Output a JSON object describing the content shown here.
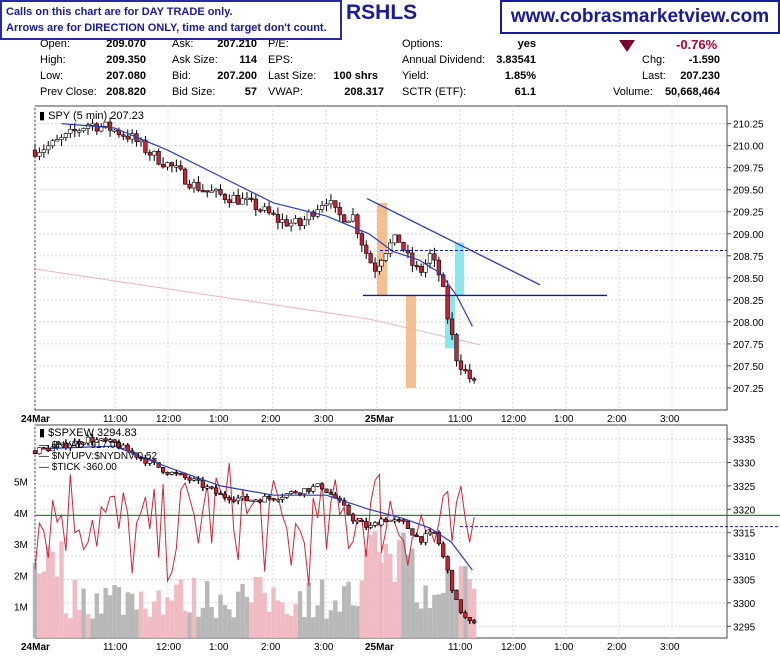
{
  "header": {
    "notice_line1": "Calls on this chart are for DAY TRADE only.",
    "notice_line2": "Arrows are for DIRECTION ONLY, time and target don't count.",
    "symbol_partial": "RSHLS",
    "website": "www.cobrasmarketview.com"
  },
  "quote": {
    "open_label": "Open:",
    "open": "209.070",
    "high_label": "High:",
    "high": "209.350",
    "low_label": "Low:",
    "low": "207.080",
    "prev_close_label": "Prev Close:",
    "prev_close": "208.820",
    "ask_label": "Ask:",
    "ask": "207.210",
    "ask_size_label": "Ask Size:",
    "ask_size": "114",
    "bid_label": "Bid:",
    "bid": "207.200",
    "bid_size_label": "Bid Size:",
    "bid_size": "57",
    "pe_label": "P/E:",
    "eps_label": "EPS:",
    "last_size_label": "Last Size:",
    "last_size": "100 shrs",
    "vwap_label": "VWAP:",
    "vwap": "208.317",
    "options_label": "Options:",
    "options": "yes",
    "annual_dividend_label": "Annual Dividend:",
    "annual_dividend": "3.83541",
    "yield_label": "Yield:",
    "yield": "1.85%",
    "sctr_label": "SCTR (ETF):",
    "sctr": "61.1",
    "pct_change": "-0.76%",
    "chg_label": "Chg:",
    "chg": "-1.590",
    "last_label": "Last:",
    "last": "207.230",
    "volume_label": "Volume:",
    "volume": "50,668,464"
  },
  "colors": {
    "accent_blue": "#1a1aa0",
    "up_candle": "#ffffff",
    "down_candle": "#cc2233",
    "ma_line": "#2b3fb5",
    "hline_green": "#2c8a2c",
    "orange_bar": "#f5b47a",
    "cyan_bar": "#7ae6ee",
    "volume_gray": "#b0b0b0",
    "volume_pink": "#f0b4bc"
  },
  "chart_data": [
    {
      "type": "candlestick",
      "title": "SPY (5 min) 207.23",
      "ylim": [
        207.0,
        210.45
      ],
      "y_ticks": [
        "210.25",
        "210.00",
        "209.75",
        "209.50",
        "209.25",
        "209.00",
        "208.75",
        "208.50",
        "208.25",
        "208.00",
        "207.75",
        "207.50",
        "207.25"
      ],
      "x_ticks": [
        "24Mar",
        "11:00",
        "12:00",
        "1:00",
        "2:00",
        "3:00",
        "25Mar",
        "11:00",
        "12:00",
        "1:00",
        "2:00",
        "3:00"
      ],
      "annotations": {
        "horizontal_support": 208.3,
        "horizontal_dashed": 208.81
      },
      "approx_close_path": [
        [
          0,
          209.95
        ],
        [
          0.3,
          210.0
        ],
        [
          0.6,
          210.1
        ],
        [
          1.0,
          210.25
        ],
        [
          1.4,
          210.2
        ],
        [
          1.8,
          210.1
        ],
        [
          2.2,
          209.9
        ],
        [
          2.6,
          209.75
        ],
        [
          3.0,
          209.55
        ],
        [
          3.4,
          209.45
        ],
        [
          3.8,
          209.4
        ],
        [
          4.2,
          209.3
        ],
        [
          4.6,
          209.15
        ],
        [
          5.0,
          209.1
        ],
        [
          5.3,
          209.3
        ],
        [
          5.5,
          209.4
        ],
        [
          5.7,
          209.2
        ],
        [
          6.0,
          209.2
        ],
        [
          6.2,
          208.85
        ],
        [
          6.4,
          208.6
        ],
        [
          6.7,
          208.85
        ],
        [
          6.9,
          208.95
        ],
        [
          7.1,
          208.7
        ],
        [
          7.3,
          208.55
        ],
        [
          7.5,
          208.75
        ],
        [
          7.7,
          208.5
        ],
        [
          7.85,
          208.0
        ],
        [
          8.0,
          207.6
        ],
        [
          8.2,
          207.4
        ],
        [
          8.4,
          207.25
        ]
      ]
    },
    {
      "type": "candlestick",
      "title": "$SPXEW 3294.83",
      "legend": [
        "$NYAD -917.00",
        "$NYUPV:$NYDNV 0.52",
        "$TICK -360.00"
      ],
      "ylim": [
        3292.5,
        3338
      ],
      "y_ticks_right": [
        "3335",
        "3330",
        "3325",
        "3320",
        "3315",
        "3310",
        "3305",
        "3300",
        "3295"
      ],
      "y_ticks_left": [
        "5M",
        "4M",
        "3M",
        "2M",
        "1M"
      ],
      "x_ticks": [
        "24Mar",
        "11:00",
        "12:00",
        "1:00",
        "2:00",
        "3:00",
        "25Mar",
        "11:00",
        "12:00",
        "1:00",
        "2:00",
        "3:00"
      ],
      "annotations": {
        "horizontal_green": 3318.7,
        "horizontal_dashed": 3316.3
      },
      "approx_close_path": [
        [
          0,
          3332.5
        ],
        [
          0.5,
          3333.5
        ],
        [
          1.0,
          3335
        ],
        [
          1.5,
          3334
        ],
        [
          2.0,
          3331
        ],
        [
          2.5,
          3328
        ],
        [
          3.0,
          3326
        ],
        [
          3.5,
          3323
        ],
        [
          4.0,
          3322
        ],
        [
          4.5,
          3322.5
        ],
        [
          5.0,
          3324
        ],
        [
          5.4,
          3325
        ],
        [
          5.7,
          3322
        ],
        [
          6.0,
          3318
        ],
        [
          6.3,
          3316
        ],
        [
          6.6,
          3318
        ],
        [
          7.0,
          3317
        ],
        [
          7.3,
          3313.5
        ],
        [
          7.6,
          3315
        ],
        [
          7.8,
          3308
        ],
        [
          8.0,
          3300
        ],
        [
          8.2,
          3296
        ],
        [
          8.4,
          3294.8
        ]
      ]
    }
  ]
}
